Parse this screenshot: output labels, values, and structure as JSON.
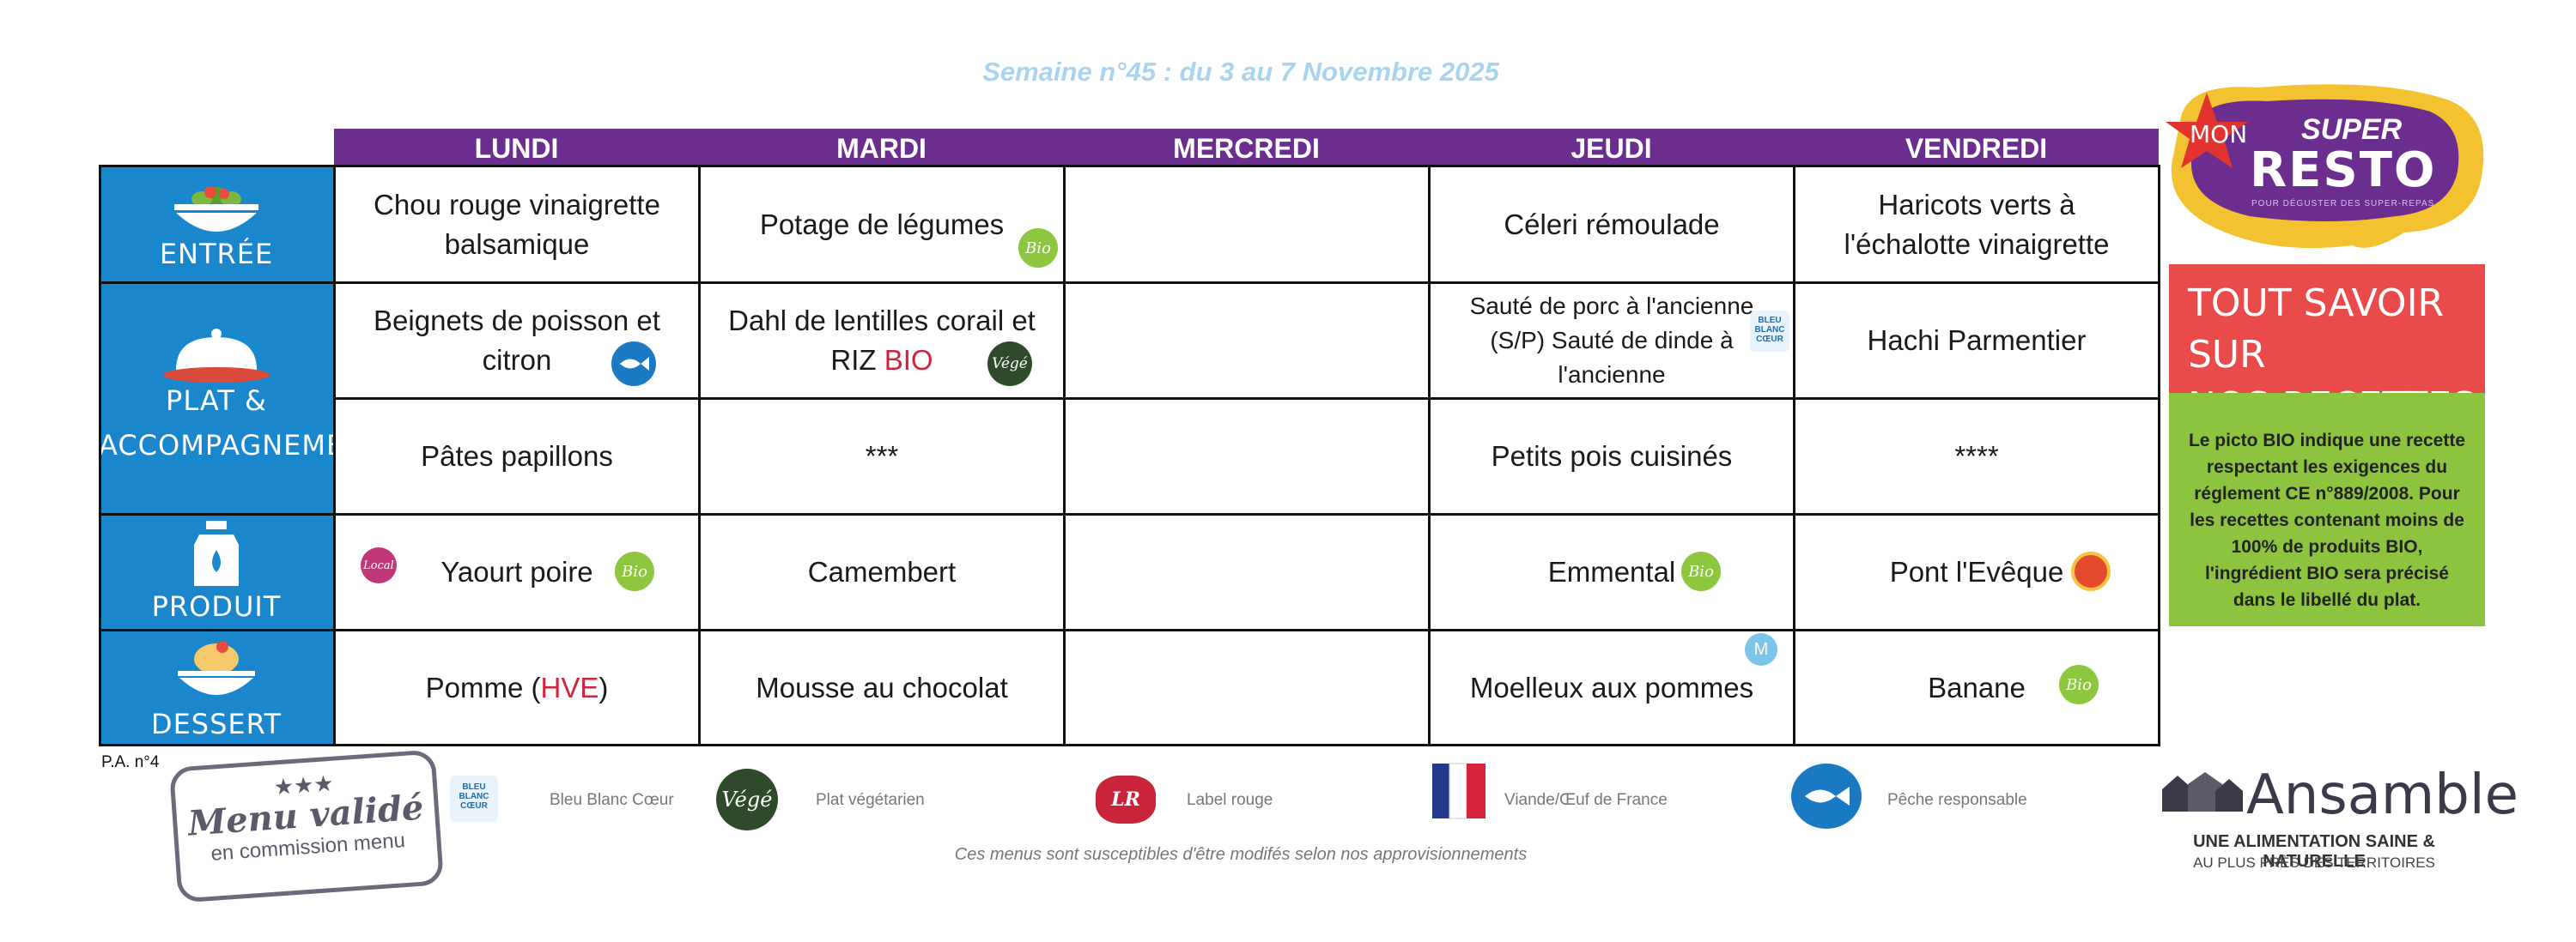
{
  "week_title": "Semaine n°45 : du 3 au 7 Novembre 2025",
  "days": [
    "LUNDI",
    "MARDI",
    "MERCREDI",
    "JEUDI",
    "VENDREDI"
  ],
  "categories": {
    "entree": "ENTRÉE",
    "plat_line1": "PLAT &",
    "plat_line2": "ACCOMPAGNEMENT",
    "laitier": "PRODUIT LAITIER",
    "dessert": "DESSERT"
  },
  "menu": {
    "entree": {
      "lundi_1": "Chou rouge vinaigrette",
      "lundi_2": "balsamique",
      "mardi": "Potage de légumes",
      "mercredi": "",
      "jeudi": "Céleri rémoulade",
      "vendredi_1": "Haricots verts à",
      "vendredi_2": "l'échalotte vinaigrette"
    },
    "plat": {
      "lundi_1": "Beignets de poisson et",
      "lundi_2": "citron",
      "mardi_1": "Dahl de lentilles corail et",
      "mardi_2a": "RIZ ",
      "mardi_2b": "BIO",
      "mercredi": "",
      "jeudi_1": "Sauté de porc à l'ancienne",
      "jeudi_2": "(S/P) Sauté de dinde à",
      "jeudi_3": "l'ancienne",
      "vendredi": "Hachi Parmentier"
    },
    "accompagnement": {
      "lundi": "Pâtes papillons",
      "mardi": "***",
      "mercredi": "",
      "jeudi": "Petits pois cuisinés",
      "vendredi": "****"
    },
    "laitier": {
      "lundi": "Yaourt poire",
      "mardi": "Camembert",
      "mercredi": "",
      "jeudi": "Emmental",
      "vendredi": "Pont l'Evêque"
    },
    "dessert": {
      "lundi_a": "Pomme (",
      "lundi_b": "HVE",
      "lundi_c": ")",
      "mardi": "Mousse au chocolat",
      "mercredi": "",
      "jeudi": "Moelleux aux pommes",
      "vendredi": "Banane"
    }
  },
  "badges": {
    "bio": "Bio",
    "vege": "Végé",
    "local": "Local",
    "m": "M",
    "bleu_blanc_coeur": "BLEU BLANC CŒUR"
  },
  "logo": {
    "mon": "MON",
    "super": "SUPER",
    "resto": "RESTO",
    "tagline": "POUR DÉGUSTER DES SUPER-REPAS"
  },
  "recipes_box": {
    "line1": "TOUT SAVOIR SUR",
    "line2": "NOS RECETTES"
  },
  "bio_note": "Le picto BIO indique une recette respectant les exigences du réglement CE n°889/2008. Pour les recettes contenant moins de 100% de produits BIO, l'ingrédient BIO sera précisé dans le libellé du plat.",
  "footer": {
    "pa": "P.A. n°4",
    "stamp_stars": "★★★",
    "stamp_line1": "Menu validé",
    "stamp_line2": "en commission menu",
    "legend": [
      "Bleu Blanc Cœur",
      "Plat végétarien",
      "Label rouge",
      "Viande/Œuf de France",
      "Pêche responsable"
    ],
    "label_rouge_badge": "LR",
    "note": "Ces menus sont susceptibles d'être modifés selon nos approvisionnements",
    "ansamble": "Ansamble",
    "ansamble_tag1": "UNE ALIMENTATION SAINE & NATURELLE",
    "ansamble_tag2": "AU PLUS PRÈS DES TERRITOIRES"
  },
  "colors": {
    "header_purple": "#6b2d8e",
    "category_blue": "#1a86cb",
    "bio_green": "#8dc63f",
    "recipes_red": "#e94a4a",
    "bio_box_green": "#8cc43f",
    "title_blue": "#a9d3ee"
  }
}
